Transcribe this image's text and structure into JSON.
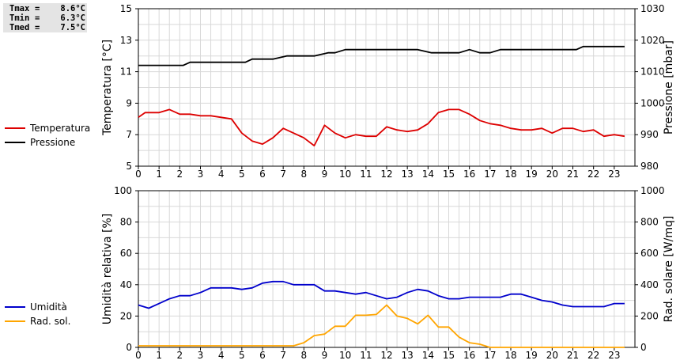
{
  "summary": [
    {
      "key": "Tmax",
      "value": "8.6°C"
    },
    {
      "key": "Tmin",
      "value": "6.3°C"
    },
    {
      "key": "Tmed",
      "value": "7.5°C"
    }
  ],
  "colors": {
    "temperature": "#dd0000",
    "pressure": "#000000",
    "humidity": "#0000cc",
    "radiation": "#ffa500",
    "grid": "#d8d8d8"
  },
  "chart_data": [
    {
      "type": "line",
      "ylabel_left": "Temperatura [°C]",
      "ylabel_right": "Pressione [mbar]",
      "xlim": [
        0,
        24
      ],
      "ylim_left": [
        5,
        15
      ],
      "ylim_right": [
        980,
        1030
      ],
      "x_ticks": [
        "0",
        "1",
        "2",
        "3",
        "4",
        "5",
        "6",
        "7",
        "8",
        "9",
        "10",
        "11",
        "12",
        "13",
        "14",
        "15",
        "16",
        "17",
        "18",
        "19",
        "20",
        "21",
        "22",
        "23"
      ],
      "y_ticks_left": [
        "5",
        "7",
        "9",
        "11",
        "13",
        "15"
      ],
      "y_ticks_right": [
        "980",
        "990",
        "1000",
        "1010",
        "1020",
        "1030"
      ],
      "grid": true,
      "series": [
        {
          "name": "Temperatura",
          "axis": "left",
          "x": [
            0,
            0.33,
            0.67,
            1,
            1.5,
            2,
            2.5,
            3,
            3.5,
            4,
            4.5,
            5,
            5.5,
            6,
            6.5,
            7,
            7.5,
            8,
            8.5,
            9,
            9.5,
            10,
            10.5,
            11,
            11.5,
            12,
            12.5,
            13,
            13.5,
            14,
            14.5,
            15,
            15.5,
            16,
            16.5,
            17,
            17.5,
            18,
            18.5,
            19,
            19.5,
            20,
            20.5,
            21,
            21.5,
            22,
            22.5,
            23,
            23.5
          ],
          "y": [
            8.1,
            8.4,
            8.4,
            8.4,
            8.6,
            8.3,
            8.3,
            8.2,
            8.2,
            8.1,
            8.0,
            7.1,
            6.6,
            6.4,
            6.8,
            7.4,
            7.1,
            6.8,
            6.3,
            7.6,
            7.1,
            6.8,
            7.0,
            6.9,
            6.9,
            7.5,
            7.3,
            7.2,
            7.3,
            7.7,
            8.4,
            8.6,
            8.6,
            8.3,
            7.9,
            7.7,
            7.6,
            7.4,
            7.3,
            7.3,
            7.4,
            7.1,
            7.4,
            7.4,
            7.2,
            7.3,
            6.9,
            7.0,
            6.9
          ]
        },
        {
          "name": "Pressione",
          "axis": "right",
          "x": [
            0,
            2.17,
            2.5,
            3,
            3.5,
            4,
            4.5,
            5.17,
            5.5,
            6,
            6.5,
            7.17,
            7.5,
            8,
            8.5,
            9.17,
            9.5,
            10,
            10.5,
            11,
            11.5,
            12,
            12.5,
            13,
            13.5,
            14.17,
            14.5,
            15,
            15.5,
            16,
            16.5,
            17,
            17.5,
            18,
            18.5,
            19,
            19.5,
            20,
            20.5,
            21.17,
            21.5,
            22,
            22.5,
            23,
            23.5
          ],
          "y": [
            1012,
            1012,
            1013,
            1013,
            1013,
            1013,
            1013,
            1013,
            1014,
            1014,
            1014,
            1015,
            1015,
            1015,
            1015,
            1016,
            1016,
            1017,
            1017,
            1017,
            1017,
            1017,
            1017,
            1017,
            1017,
            1016,
            1016,
            1016,
            1016,
            1017,
            1016,
            1016,
            1017,
            1017,
            1017,
            1017,
            1017,
            1017,
            1017,
            1017,
            1018,
            1018,
            1018,
            1018,
            1018
          ]
        }
      ]
    },
    {
      "type": "line",
      "ylabel_left": "Umidità relativa [%]",
      "ylabel_right": "Rad. solare [W/mq]",
      "xlim": [
        0,
        24
      ],
      "ylim_left": [
        0,
        100
      ],
      "ylim_right": [
        0,
        1000
      ],
      "x_ticks": [
        "0",
        "1",
        "2",
        "3",
        "4",
        "5",
        "6",
        "7",
        "8",
        "9",
        "10",
        "11",
        "12",
        "13",
        "14",
        "15",
        "16",
        "17",
        "18",
        "19",
        "20",
        "21",
        "22",
        "23"
      ],
      "y_ticks_left": [
        "0",
        "20",
        "40",
        "60",
        "80",
        "100"
      ],
      "y_ticks_right": [
        "0",
        "200",
        "400",
        "600",
        "800",
        "1000"
      ],
      "grid": true,
      "series": [
        {
          "name": "Umidità",
          "axis": "left",
          "x": [
            0,
            0.5,
            1,
            1.5,
            2,
            2.5,
            3,
            3.5,
            4,
            4.5,
            5,
            5.5,
            6,
            6.5,
            7,
            7.5,
            8,
            8.5,
            9,
            9.5,
            10,
            10.5,
            11,
            11.5,
            12,
            12.5,
            13,
            13.5,
            14,
            14.5,
            15,
            15.5,
            16,
            16.5,
            17,
            17.5,
            18,
            18.5,
            19,
            19.5,
            20,
            20.5,
            21,
            21.5,
            22,
            22.5,
            23,
            23.5
          ],
          "y": [
            27,
            25,
            28,
            31,
            33,
            33,
            35,
            38,
            38,
            38,
            37,
            38,
            41,
            42,
            42,
            40,
            40,
            40,
            36,
            36,
            35,
            34,
            35,
            33,
            31,
            32,
            35,
            37,
            36,
            33,
            31,
            31,
            32,
            32,
            32,
            32,
            34,
            34,
            32,
            30,
            29,
            27,
            26,
            26,
            26,
            26,
            28,
            28
          ]
        },
        {
          "name": "Rad. sol.",
          "axis": "right",
          "x": [
            0,
            1,
            2,
            3,
            4,
            5,
            6,
            7,
            7.5,
            8,
            8.5,
            9,
            9.5,
            10,
            10.5,
            11,
            11.5,
            12,
            12.5,
            13,
            13.5,
            14,
            14.5,
            15,
            15.5,
            16,
            16.5,
            17,
            18,
            19,
            20,
            21,
            22,
            23,
            23.5
          ],
          "y": [
            10,
            10,
            10,
            10,
            10,
            10,
            10,
            10,
            10,
            30,
            75,
            85,
            135,
            135,
            205,
            205,
            210,
            270,
            200,
            185,
            150,
            205,
            130,
            130,
            65,
            30,
            20,
            0,
            0,
            0,
            0,
            0,
            0,
            0,
            0
          ]
        }
      ]
    }
  ],
  "legend": {
    "top": [
      {
        "label": "Temperatura",
        "color": "#dd0000"
      },
      {
        "label": "Pressione",
        "color": "#000000"
      }
    ],
    "bottom": [
      {
        "label": "Umidità",
        "color": "#0000cc"
      },
      {
        "label": "Rad. sol.",
        "color": "#ffa500"
      }
    ]
  }
}
